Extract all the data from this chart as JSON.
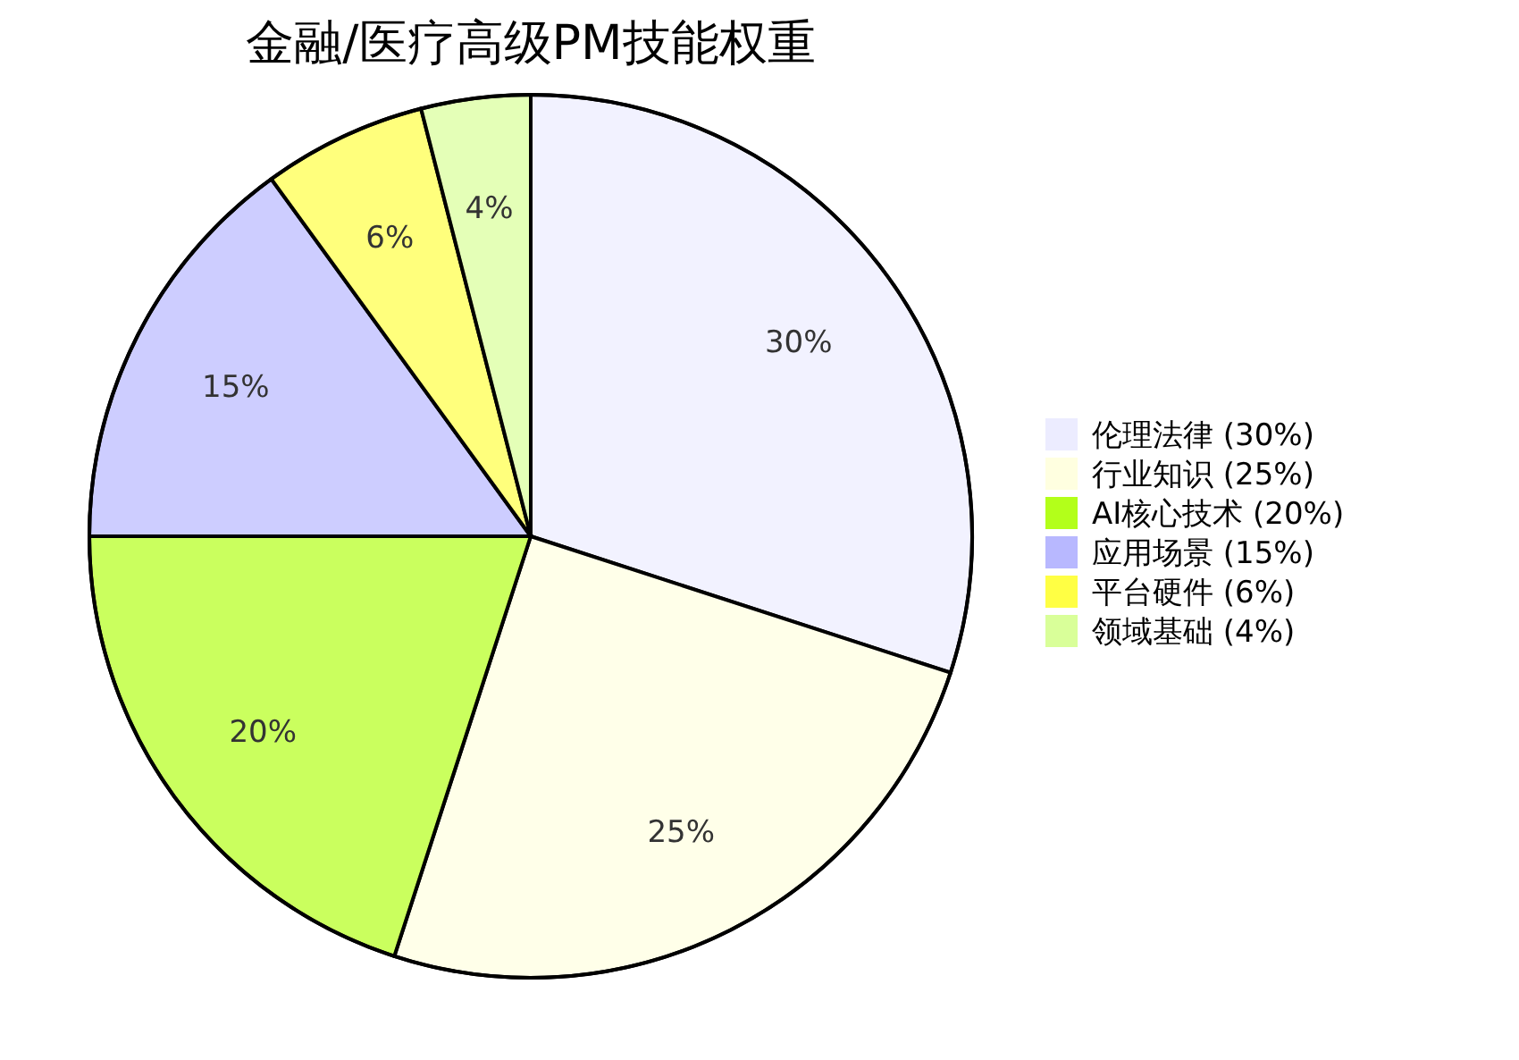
{
  "chart_data": {
    "type": "pie",
    "title": "金融/医疗高级PM技能权重",
    "categories": [
      "伦理法律 (30%)",
      "行业知识 (25%)",
      "AI核心技术 (20%)",
      "应用场景 (15%)",
      "平台硬件 (6%)",
      "领域基础 (4%)"
    ],
    "values": [
      30,
      25,
      20,
      15,
      6,
      4
    ],
    "colors": [
      "#ececff",
      "#ffffe0",
      "#b3ff1a",
      "#b8b8ff",
      "#ffff44",
      "#d9ff99"
    ],
    "value_labels": [
      "30%",
      "25%",
      "20%",
      "15%",
      "6%",
      "4%"
    ],
    "legend": "right"
  }
}
